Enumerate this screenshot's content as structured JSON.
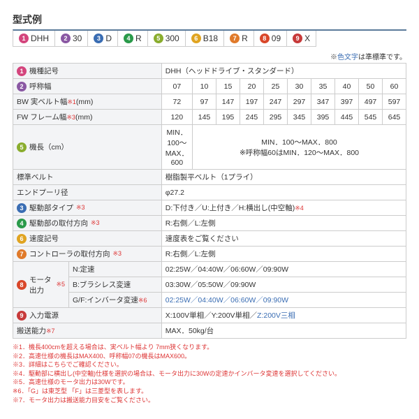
{
  "title": "型式例",
  "badgeColors": [
    "#d4457d",
    "#8a58a3",
    "#3a6db3",
    "#2a9a4a",
    "#8aad2e",
    "#e0a421",
    "#e07a2a",
    "#d9472a",
    "#c73a3a"
  ],
  "model": [
    {
      "n": "1",
      "t": "DHH"
    },
    {
      "n": "2",
      "t": "30"
    },
    {
      "n": "3",
      "t": "D"
    },
    {
      "n": "4",
      "t": "R"
    },
    {
      "n": "5",
      "t": "300"
    },
    {
      "n": "6",
      "t": "B18"
    },
    {
      "n": "7",
      "t": "R"
    },
    {
      "n": "8",
      "t": "09"
    },
    {
      "n": "9",
      "t": "X"
    }
  ],
  "noteRight": {
    "pre": "※",
    "blue": "色文字",
    "post": "は準標準です。"
  },
  "rows": {
    "r1": {
      "n": "1",
      "label": "機種記号",
      "val": "DHH（ヘッドドライブ・スタンダード）"
    },
    "r2": {
      "n": "2",
      "label": "呼称幅",
      "cells": [
        "07",
        "10",
        "15",
        "20",
        "25",
        "30",
        "35",
        "40",
        "50",
        "60"
      ]
    },
    "r3": {
      "label": "BW 実ベルト幅",
      "sub": "※1",
      "unit": "(mm)",
      "cells": [
        "72",
        "97",
        "147",
        "197",
        "247",
        "297",
        "347",
        "397",
        "497",
        "597"
      ]
    },
    "r4": {
      "label": "FW フレーム幅",
      "sub": "※3",
      "unit": "(mm)",
      "cells": [
        "120",
        "145",
        "195",
        "245",
        "295",
        "345",
        "395",
        "445",
        "545",
        "645"
      ]
    },
    "r5": {
      "n": "5",
      "label": "機長（cm）",
      "c1": "MIN．100～MAX．600",
      "c2": "MIN．100～MAX．800\n※呼称幅60はMIN．120～MAX．800"
    },
    "r6": {
      "label": "標準ベルト",
      "val": "樹脂製平ベルト（1プライ）"
    },
    "r7": {
      "label": "エンドプーリ径",
      "val": "φ27.2"
    },
    "r8": {
      "n": "3",
      "label": "駆動部タイプ",
      "sub": "※3",
      "val": "D:下付き／U:上付き／H:横出し(中空軸)",
      "suf": "※4"
    },
    "r9": {
      "n": "4",
      "label": "駆動部の取付方向",
      "sub": "※3",
      "val": "R:右側／L:左側"
    },
    "r10": {
      "n": "6",
      "label": "速度記号",
      "val": "速度表をご覧ください"
    },
    "r11": {
      "n": "7",
      "label": "コントローラの取付方向",
      "sub": "※3",
      "val": "R:右側／L:左側"
    },
    "r12": {
      "n": "8",
      "label": "モータ出力",
      "sub": "※5",
      "a": "N:定速",
      "av": "02:25W／04:40W／06:60W／09:90W",
      "b": "B:ブラシレス変速",
      "bv": "03:30W／05:50W／09:90W",
      "c": "G/F:インバータ変速",
      "csub": "※6",
      "cv": "02:25W／04:40W／06:60W／09:90W"
    },
    "r13": {
      "n": "9",
      "label": "入力電源",
      "val": "X:100V単相／Y:200V単相／",
      "blue": "Z:200V三相"
    },
    "r14": {
      "label": "搬送能力",
      "sub": "※7",
      "val": "MAX．50kg/台"
    }
  },
  "footnotes": [
    "※1．機長400cmを超える場合は、実ベルト幅より 7mm狭くなります。",
    "※2．高速仕様の機長はMAX400、呼称幅07の機長はMAX600。",
    "※3．詳細はこちらでご確認ください。",
    "※4．駆動部に横出し(中空軸)仕様を選択の場合は、モータ出力に30Wの定速かインバータ変速を選択してください。",
    "※5．高速仕様のモータ出力は30Wです。",
    "※6．「G」は東芝型 「F」は三菱型を表します。",
    "※7．モータ出力は搬送能力目安をご覧ください。"
  ]
}
